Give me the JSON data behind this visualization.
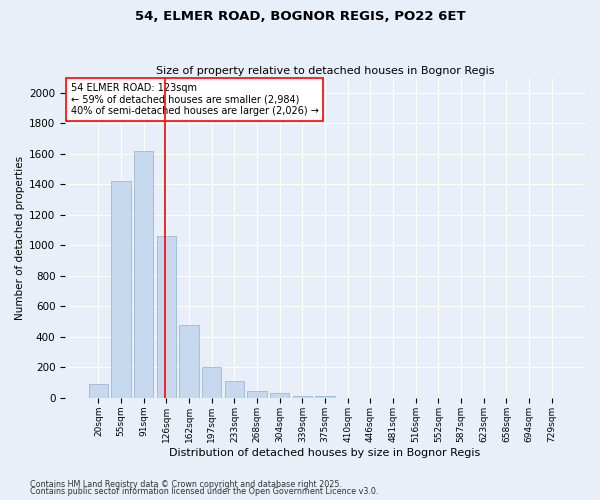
{
  "title1": "54, ELMER ROAD, BOGNOR REGIS, PO22 6ET",
  "title2": "Size of property relative to detached houses in Bognor Regis",
  "xlabel": "Distribution of detached houses by size in Bognor Regis",
  "ylabel": "Number of detached properties",
  "categories": [
    "20sqm",
    "55sqm",
    "91sqm",
    "126sqm",
    "162sqm",
    "197sqm",
    "233sqm",
    "268sqm",
    "304sqm",
    "339sqm",
    "375sqm",
    "410sqm",
    "446sqm",
    "481sqm",
    "516sqm",
    "552sqm",
    "587sqm",
    "623sqm",
    "658sqm",
    "694sqm",
    "729sqm"
  ],
  "values": [
    90,
    1420,
    1620,
    1060,
    480,
    205,
    110,
    45,
    30,
    15,
    12,
    0,
    0,
    0,
    0,
    0,
    0,
    0,
    0,
    0,
    0
  ],
  "bar_color": "#c5d8ed",
  "bar_edge_color": "#a0b8d0",
  "vline_color": "red",
  "vline_x": 2.93,
  "annotation_title": "54 ELMER ROAD: 123sqm",
  "annotation_line1": "← 59% of detached houses are smaller (2,984)",
  "annotation_line2": "40% of semi-detached houses are larger (2,026) →",
  "annotation_box_color": "red",
  "ylim": [
    0,
    2100
  ],
  "yticks": [
    0,
    200,
    400,
    600,
    800,
    1000,
    1200,
    1400,
    1600,
    1800,
    2000
  ],
  "footer1": "Contains HM Land Registry data © Crown copyright and database right 2025.",
  "footer2": "Contains public sector information licensed under the Open Government Licence v3.0.",
  "bg_color": "#e8eff8",
  "plot_bg_color": "#e8eff8"
}
